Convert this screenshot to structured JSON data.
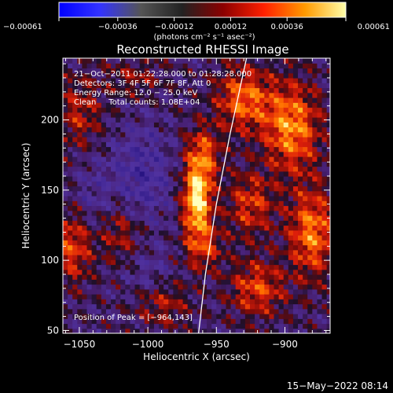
{
  "chart_data": {
    "type": "heatmap",
    "title": "Reconstructed RHESSI Image",
    "xlabel": "Heliocentric X (arcsec)",
    "ylabel": "Heliocentric Y (arcsec)",
    "xlim": [
      -1062,
      -867
    ],
    "ylim": [
      48,
      244
    ],
    "xticks": [
      -1050,
      -1000,
      -950,
      -900
    ],
    "xtick_labels": [
      "−1050",
      "−1000",
      "−950",
      "−900"
    ],
    "yticks": [
      50,
      100,
      150,
      200
    ],
    "ytick_labels": [
      "50",
      "100",
      "150",
      "200"
    ],
    "colorbar": {
      "min": -0.00061,
      "max": 0.00061,
      "ticks": [
        -0.00061,
        -0.00036,
        -0.00012,
        0.00012,
        0.00036,
        0.00061
      ],
      "tick_labels": [
        "−0.00061",
        "−0.00036",
        "−0.00012",
        "0.00012",
        "0.00036",
        "0.00061"
      ],
      "units_label": "(photons cm⁻² s⁻¹ asec⁻²)",
      "colors": [
        "#0000ff",
        "#3333ff",
        "#555555",
        "#222222",
        "#8b0000",
        "#ff2000",
        "#ff9a00",
        "#ffffaa"
      ]
    },
    "info_lines": [
      "21−Oct−2011 01:22:28.000 to 01:28:28.000",
      "Detectors: 3F 4F 5F 6F 7F 8F, Att 0",
      "Energy Range: 12.0 − 25.0 keV",
      "Clean     Total counts: 1.08E+04"
    ],
    "peak_label": "Position of Peak = [−964,143]",
    "peak_position": [
      -964,
      143
    ],
    "peak_value": 0.00061,
    "limb_curve": [
      [
        -963,
        48
      ],
      [
        -958,
        90
      ],
      [
        -950,
        140
      ],
      [
        -940,
        190
      ],
      [
        -928,
        244
      ]
    ],
    "source_components": [
      {
        "x": -964,
        "y": 143,
        "amplitude": 1.0,
        "sx": 7,
        "sy": 16
      },
      {
        "x": -960,
        "y": 175,
        "amplitude": 0.55,
        "sx": 9,
        "sy": 14
      },
      {
        "x": -960,
        "y": 110,
        "amplitude": 0.45,
        "sx": 10,
        "sy": 12
      },
      {
        "x": -1055,
        "y": 110,
        "amplitude": 0.5,
        "sx": 10,
        "sy": 18
      },
      {
        "x": -1050,
        "y": 205,
        "amplitude": 0.35,
        "sx": 12,
        "sy": 18
      },
      {
        "x": -1020,
        "y": 120,
        "amplitude": 0.35,
        "sx": 12,
        "sy": 16
      },
      {
        "x": -930,
        "y": 215,
        "amplitude": 0.6,
        "sx": 14,
        "sy": 16
      },
      {
        "x": -895,
        "y": 195,
        "amplitude": 0.7,
        "sx": 14,
        "sy": 22
      },
      {
        "x": -880,
        "y": 120,
        "amplitude": 0.65,
        "sx": 12,
        "sy": 22
      },
      {
        "x": -925,
        "y": 140,
        "amplitude": 0.45,
        "sx": 12,
        "sy": 16
      },
      {
        "x": -920,
        "y": 80,
        "amplitude": 0.5,
        "sx": 14,
        "sy": 14
      },
      {
        "x": -990,
        "y": 70,
        "amplitude": 0.35,
        "sx": 14,
        "sy": 12
      },
      {
        "x": -1010,
        "y": 230,
        "amplitude": 0.25,
        "sx": 14,
        "sy": 10
      }
    ],
    "negative_components": [
      {
        "x": -1005,
        "y": 160,
        "amplitude": -0.35,
        "sx": 15,
        "sy": 25
      },
      {
        "x": -1040,
        "y": 145,
        "amplitude": -0.2,
        "sx": 10,
        "sy": 20
      },
      {
        "x": -1000,
        "y": 90,
        "amplitude": -0.2,
        "sx": 14,
        "sy": 14
      }
    ]
  },
  "footer": {
    "timestamp": "15−May−2022 08:14"
  }
}
